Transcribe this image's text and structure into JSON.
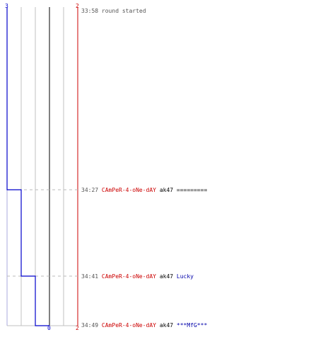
{
  "axis": {
    "left_top": "3",
    "right_top": "2",
    "bottom_mid": "0",
    "bottom_right": "2"
  },
  "colors": {
    "team_blue": "#0000cc",
    "team_red": "#cc0000",
    "grid": "#c0c0c0",
    "zero_line": "#808080",
    "dashed": "#bbbbbb"
  },
  "chart_data": {
    "type": "line",
    "series": [
      {
        "name": "",
        "values": [
          3,
          2,
          1,
          0
        ]
      }
    ],
    "xlim": [
      3,
      -2
    ],
    "note_events_count": 4
  },
  "events": [
    {
      "time": "33:58",
      "text": "round started"
    },
    {
      "time": "34:27",
      "killer": "CAmPeR-4-oNe-dAY",
      "weapon": "ak47",
      "victim": "=========",
      "victim_style": "plain"
    },
    {
      "time": "34:41",
      "killer": "CAmPeR-4-oNe-dAY",
      "weapon": "ak47",
      "victim": "Lucky",
      "victim_style": "blue"
    },
    {
      "time": "34:49",
      "killer": "CAmPeR-4-oNe-dAY",
      "weapon": "ak47",
      "victim": "***MfG***",
      "victim_style": "blue"
    }
  ]
}
